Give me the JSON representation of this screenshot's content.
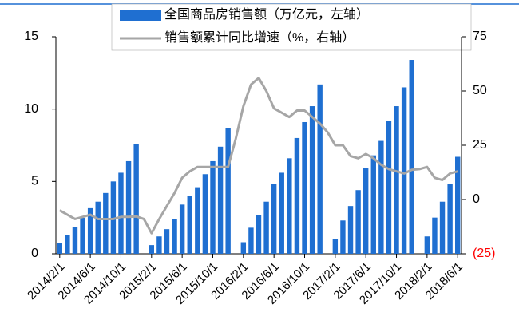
{
  "chart_data": {
    "type": "bar_line",
    "categories": [
      "2014/2/1",
      null,
      null,
      null,
      "2014/6/1",
      null,
      null,
      null,
      "2014/10/1",
      null,
      null,
      null,
      "2015/2/1",
      null,
      null,
      null,
      "2015/6/1",
      null,
      null,
      null,
      "2015/10/1",
      null,
      null,
      null,
      "2016/2/1",
      null,
      null,
      null,
      "2016/6/1",
      null,
      null,
      null,
      "2016/10/1",
      null,
      null,
      null,
      "2017/2/1",
      null,
      null,
      null,
      "2017/6/1",
      null,
      null,
      null,
      "2017/10/1",
      null,
      null,
      null,
      "2018/2/1",
      null,
      null,
      null,
      "2018/6/1"
    ],
    "series": [
      {
        "name": "全国商品房销售额（万亿元，左轴）",
        "color": "#1f6fd1",
        "kind": "bar",
        "values": [
          0.74,
          1.31,
          1.86,
          2.48,
          3.15,
          3.6,
          4.2,
          5.0,
          5.6,
          6.4,
          7.6,
          null,
          0.6,
          1.2,
          1.7,
          2.4,
          3.4,
          4.0,
          4.6,
          5.5,
          6.4,
          7.4,
          8.7,
          null,
          0.8,
          1.8,
          2.7,
          3.6,
          4.8,
          5.6,
          6.6,
          8.0,
          9.1,
          10.2,
          11.7,
          null,
          1.0,
          2.3,
          3.3,
          4.4,
          5.9,
          6.8,
          7.8,
          9.2,
          10.2,
          11.5,
          13.4,
          null,
          1.2,
          2.5,
          3.6,
          4.8,
          6.7
        ]
      },
      {
        "name": "销售额累计同比增速（%，右轴）",
        "color": "#a6a6a6",
        "kind": "line",
        "axis": "y2",
        "values": [
          -5,
          -7,
          -9,
          -8,
          -7,
          -9,
          -9,
          -9,
          -8,
          -8,
          -7.8,
          -9,
          -15.5,
          -9,
          -3,
          3,
          10,
          13,
          15,
          15,
          15,
          15,
          15,
          28,
          43,
          53,
          56,
          50,
          42,
          40,
          38,
          41,
          41,
          38,
          35,
          31,
          25,
          25,
          20,
          19,
          21,
          19,
          16,
          14,
          13,
          12,
          13.7,
          14,
          15,
          10,
          9,
          12,
          13
        ]
      }
    ],
    "ylim": [
      0,
      15
    ],
    "yticks": [
      0,
      5,
      10,
      15
    ],
    "y2lim": [
      -25,
      75
    ],
    "y2ticks": [
      {
        "value": -25,
        "label": "(25)"
      },
      0,
      25,
      50,
      75
    ],
    "negative_color": "#ff0000"
  }
}
